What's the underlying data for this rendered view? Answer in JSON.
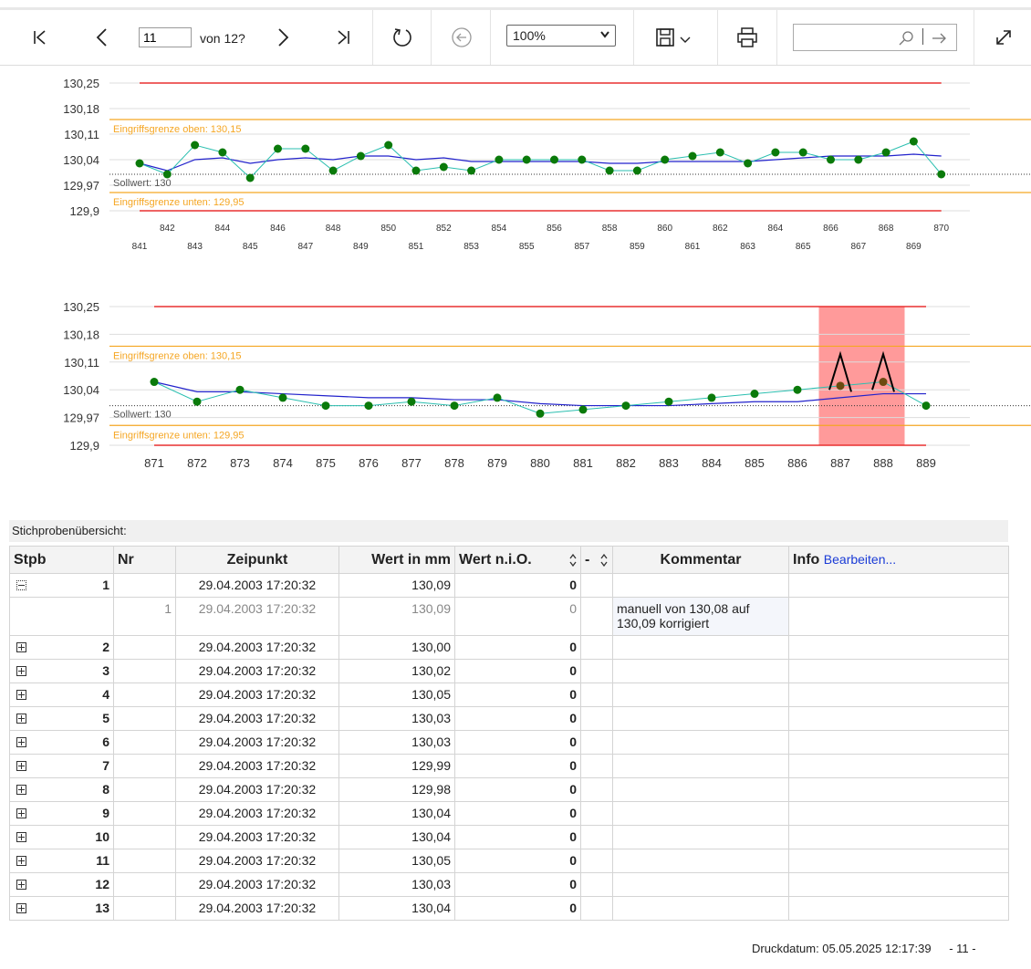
{
  "toolbar": {
    "page_input_value": "11",
    "page_total": "von 12?",
    "zoom_value": "100%",
    "search_placeholder": ""
  },
  "chart_data": [
    {
      "type": "line",
      "y_ticks": [
        "130,25",
        "130,18",
        "130,11",
        "130,04",
        "129,97",
        "129,9"
      ],
      "ylim": [
        129.9,
        130.25
      ],
      "x_upper_labels": [
        "842",
        "844",
        "846",
        "848",
        "850",
        "852",
        "854",
        "856",
        "858",
        "860",
        "862",
        "864",
        "866",
        "868",
        "870"
      ],
      "x_lower_labels": [
        "841",
        "843",
        "845",
        "847",
        "849",
        "851",
        "853",
        "855",
        "857",
        "859",
        "861",
        "863",
        "865",
        "867",
        "869"
      ],
      "x": [
        841,
        842,
        843,
        844,
        845,
        846,
        847,
        848,
        849,
        850,
        851,
        852,
        853,
        854,
        855,
        856,
        857,
        858,
        859,
        860,
        861,
        862,
        863,
        864,
        865,
        866,
        867,
        868,
        869,
        870
      ],
      "series": [
        {
          "values": [
            130.03,
            130.0,
            130.08,
            130.06,
            129.99,
            130.07,
            130.07,
            130.01,
            130.05,
            130.08,
            130.01,
            130.02,
            130.01,
            130.04,
            130.04,
            130.04,
            130.04,
            130.01,
            130.01,
            130.04,
            130.05,
            130.06,
            130.03,
            130.06,
            130.06,
            130.04,
            130.04,
            130.06,
            130.09,
            130.0
          ]
        },
        {
          "values": [
            130.03,
            130.01,
            130.04,
            130.045,
            130.03,
            130.04,
            130.045,
            130.04,
            130.05,
            130.05,
            130.04,
            130.045,
            130.035,
            130.035,
            130.035,
            130.035,
            130.035,
            130.03,
            130.03,
            130.035,
            130.035,
            130.035,
            130.035,
            130.04,
            130.045,
            130.05,
            130.05,
            130.05,
            130.055,
            130.05
          ]
        }
      ],
      "limits": {
        "upper_red": 130.25,
        "lower_red": 129.9
      },
      "annotations": {
        "upper_intervention": "Eingriffsgrenze oben: 130,15",
        "target": "Sollwert: 130",
        "lower_intervention": "Eingriffsgrenze unten: 129,95"
      },
      "colors": {
        "measurement": "#2bbfb0",
        "mean": "#2222cc",
        "points": "#0a7a0a",
        "limit": "#e83030",
        "intervention": "#f5a623"
      }
    },
    {
      "type": "line",
      "y_ticks": [
        "130,25",
        "130,18",
        "130,11",
        "130,04",
        "129,97",
        "129,9"
      ],
      "ylim": [
        129.9,
        130.25
      ],
      "x_labels": [
        "871",
        "872",
        "873",
        "874",
        "875",
        "876",
        "877",
        "878",
        "879",
        "880",
        "881",
        "882",
        "883",
        "884",
        "885",
        "886",
        "887",
        "888",
        "889"
      ],
      "x": [
        871,
        872,
        873,
        874,
        875,
        876,
        877,
        878,
        879,
        880,
        881,
        882,
        883,
        884,
        885,
        886,
        887,
        888,
        889
      ],
      "series": [
        {
          "values": [
            130.06,
            130.01,
            130.04,
            130.02,
            130.0,
            130.0,
            130.01,
            130.0,
            130.02,
            129.98,
            129.99,
            130.0,
            130.01,
            130.02,
            130.03,
            130.04,
            130.05,
            130.06,
            130.0
          ]
        },
        {
          "values": [
            130.06,
            130.035,
            130.035,
            130.03,
            130.025,
            130.02,
            130.02,
            130.015,
            130.015,
            130.005,
            130.0,
            130.0,
            130.0,
            130.005,
            130.01,
            130.01,
            130.02,
            130.03,
            130.03
          ]
        }
      ],
      "limits": {
        "upper_red": 130.25,
        "lower_red": 129.9
      },
      "highlight_range": [
        886.5,
        888.5
      ],
      "annotations": {
        "upper_intervention": "Eingriffsgrenze oben: 130,15",
        "target": "Sollwert: 130",
        "lower_intervention": "Eingriffsgrenze unten: 129,95"
      },
      "colors": {
        "measurement": "#2bbfb0",
        "mean": "#2222cc",
        "points": "#0a7a0a",
        "limit": "#e83030",
        "intervention": "#f5a623",
        "highlight": "#ff9a9a"
      }
    }
  ],
  "table": {
    "title": "Stichprobenübersicht:",
    "headers": {
      "stpb": "Stpb",
      "nr": "Nr",
      "zeitpunkt": "Zeipunkt",
      "wert": "Wert in mm",
      "wert_nio": "Wert n.i.O.",
      "dash": "-",
      "kommentar": "Kommentar",
      "info": "Info",
      "edit_link": "Bearbeiten..."
    },
    "rows": [
      {
        "stpb": "1",
        "zeit": "29.04.2003 17:20:32",
        "wert": "130,09",
        "nio": "0"
      },
      {
        "nr": "1",
        "zeit": "29.04.2003 17:20:32",
        "wert": "130,09",
        "nio": "0",
        "kommentar": "manuell von 130,08 auf 130,09 korrigiert"
      },
      {
        "stpb": "2",
        "zeit": "29.04.2003 17:20:32",
        "wert": "130,00",
        "nio": "0"
      },
      {
        "stpb": "3",
        "zeit": "29.04.2003 17:20:32",
        "wert": "130,02",
        "nio": "0"
      },
      {
        "stpb": "4",
        "zeit": "29.04.2003 17:20:32",
        "wert": "130,05",
        "nio": "0"
      },
      {
        "stpb": "5",
        "zeit": "29.04.2003 17:20:32",
        "wert": "130,03",
        "nio": "0"
      },
      {
        "stpb": "6",
        "zeit": "29.04.2003 17:20:32",
        "wert": "130,03",
        "nio": "0"
      },
      {
        "stpb": "7",
        "zeit": "29.04.2003 17:20:32",
        "wert": "129,99",
        "nio": "0"
      },
      {
        "stpb": "8",
        "zeit": "29.04.2003 17:20:32",
        "wert": "129,98",
        "nio": "0"
      },
      {
        "stpb": "9",
        "zeit": "29.04.2003 17:20:32",
        "wert": "130,04",
        "nio": "0"
      },
      {
        "stpb": "10",
        "zeit": "29.04.2003 17:20:32",
        "wert": "130,04",
        "nio": "0"
      },
      {
        "stpb": "11",
        "zeit": "29.04.2003 17:20:32",
        "wert": "130,05",
        "nio": "0"
      },
      {
        "stpb": "12",
        "zeit": "29.04.2003 17:20:32",
        "wert": "130,03",
        "nio": "0"
      },
      {
        "stpb": "13",
        "zeit": "29.04.2003 17:20:32",
        "wert": "130,04",
        "nio": "0"
      }
    ]
  },
  "footer": {
    "print_date": "Druckdatum: 05.05.2025 12:17:39",
    "page": "- 11 -"
  }
}
